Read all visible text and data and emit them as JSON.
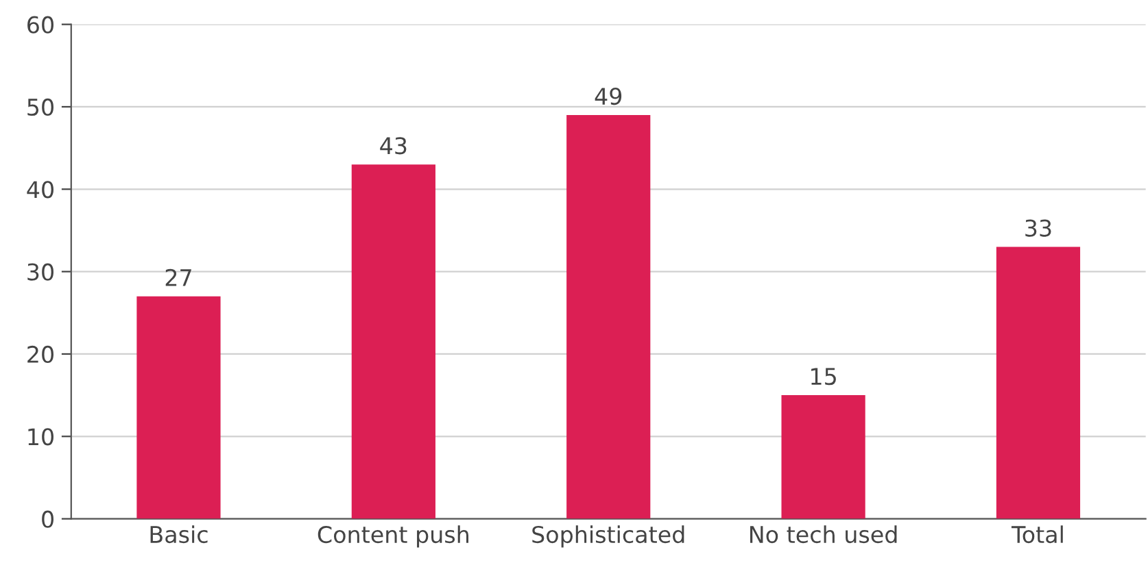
{
  "chart_data": {
    "type": "bar",
    "categories": [
      "Basic",
      "Content push",
      "Sophisticated",
      "No tech used",
      "Total"
    ],
    "values": [
      27,
      43,
      49,
      15,
      33
    ],
    "color": "#dc1f54",
    "ylim": [
      0,
      60
    ],
    "yticks": [
      0,
      10,
      20,
      30,
      40,
      50,
      60
    ],
    "grid": "y",
    "data_labels": true
  }
}
